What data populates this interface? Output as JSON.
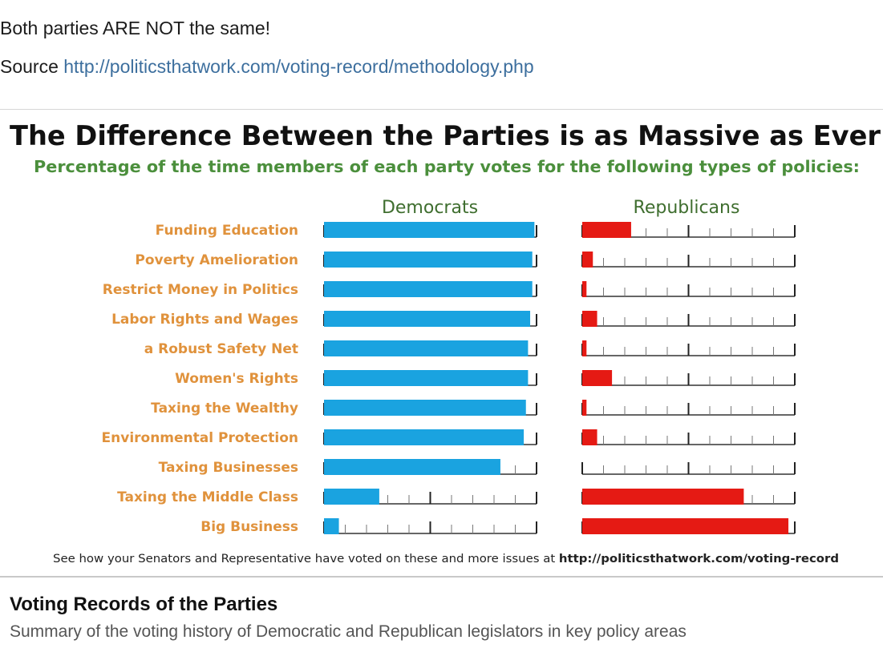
{
  "post": {
    "text": "Both parties ARE NOT the same!",
    "source_label": "Source",
    "source_url": "http://politicsthatwork.com/voting-record/methodology.php"
  },
  "colors": {
    "democrats": "#1aa3e0",
    "republicans": "#e51a14",
    "category_label": "#e0923c",
    "subtitle": "#4b8f3c",
    "series_label": "#3f6e2f",
    "axis": "#333333"
  },
  "chart_data": {
    "type": "bar",
    "orientation": "horizontal",
    "title": "The Difference Between the Parties is as Massive as Ever",
    "subtitle": "Percentage of the time members of each party votes for the following types of policies:",
    "xlim": [
      0,
      100
    ],
    "categories": [
      "Funding Education",
      "Poverty Amelioration",
      "Restrict Money in Politics",
      "Labor Rights and Wages",
      "a Robust Safety Net",
      "Women's Rights",
      "Taxing the Wealthy",
      "Environmental Protection",
      "Taxing Businesses",
      "Taxing the Middle Class",
      "Big Business"
    ],
    "series": [
      {
        "name": "Democrats",
        "values": [
          99,
          98,
          98,
          97,
          96,
          96,
          95,
          94,
          83,
          26,
          7
        ]
      },
      {
        "name": "Republicans",
        "values": [
          23,
          5,
          2,
          7,
          2,
          14,
          2,
          7,
          0,
          76,
          97
        ]
      }
    ],
    "footnote_prefix": "See how your Senators and Representative have voted on these and more issues at",
    "footnote_link": "http://politicsthatwork.com/voting-record"
  },
  "preview": {
    "title": "Voting Records of the Parties",
    "description": "Summary of the voting history of Democratic and Republican legislators in key policy areas"
  }
}
